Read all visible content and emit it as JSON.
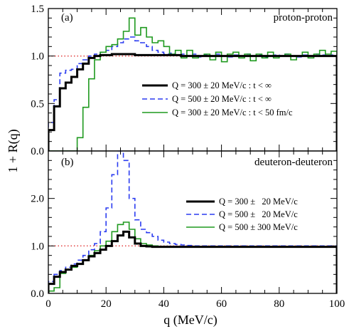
{
  "chart_data": [
    {
      "type": "line",
      "step": true,
      "panel_tag": "(a)",
      "title": "proton-proton",
      "xlabel": "q (MeV/c)",
      "ylabel": "1 + R(q)",
      "xlim": [
        0,
        100
      ],
      "ylim": [
        0,
        1.5
      ],
      "xticks": [
        "0",
        "20",
        "40",
        "60",
        "80",
        "100"
      ],
      "yticks": [
        "0.0",
        "0.5",
        "1.0",
        "1.5"
      ],
      "legend_position": "center-right",
      "reference_line": {
        "y": 1.0,
        "color": "#e03030",
        "style": "dotted"
      },
      "bin_edges": [
        0,
        2,
        4,
        6,
        8,
        10,
        12,
        14,
        16,
        18,
        20,
        22,
        24,
        26,
        28,
        30,
        32,
        34,
        36,
        38,
        40,
        42,
        44,
        46,
        48,
        50,
        52,
        54,
        56,
        58,
        60,
        62,
        64,
        66,
        68,
        70,
        72,
        74,
        76,
        78,
        80,
        82,
        84,
        86,
        88,
        90,
        92,
        94,
        96,
        98,
        100
      ],
      "series": [
        {
          "name": "Q = 300 ± 20 MeV/c : t < ∞",
          "color": "#000000",
          "dash": "solid",
          "width": 3,
          "values": [
            0.22,
            0.47,
            0.66,
            0.72,
            0.78,
            0.86,
            0.92,
            0.98,
            1.0,
            1.01,
            1.01,
            1.02,
            1.02,
            1.02,
            1.02,
            1.01,
            1.01,
            1.01,
            1.01,
            1.01,
            1.01,
            1.01,
            1.01,
            1.0,
            1.0,
            1.0,
            1.0,
            1.0,
            1.0,
            1.0,
            1.0,
            1.0,
            1.0,
            1.0,
            1.0,
            1.0,
            1.0,
            1.0,
            1.0,
            1.0,
            1.0,
            1.0,
            1.0,
            1.0,
            1.0,
            1.0,
            1.0,
            1.0,
            1.0,
            1.0
          ]
        },
        {
          "name": "Q = 500 ± 20 MeV/c : t < ∞",
          "color": "#2b3cf0",
          "dash": "dashed",
          "width": 1.6,
          "values": [
            0.3,
            0.54,
            0.82,
            0.85,
            0.86,
            0.92,
            0.96,
            1.0,
            1.02,
            1.04,
            1.06,
            1.1,
            1.14,
            1.18,
            1.2,
            1.16,
            1.14,
            1.1,
            1.06,
            1.04,
            1.02,
            1.03,
            1.01,
            1.02,
            1.0,
            1.02,
            0.99,
            1.01,
            1.0,
            1.02,
            1.0,
            0.99,
            1.01,
            1.0,
            1.02,
            1.0,
            1.01,
            0.99,
            1.0,
            1.01,
            1.0,
            1.02,
            1.0,
            0.99,
            1.01,
            1.0,
            1.02,
            1.01,
            1.0,
            1.01
          ]
        },
        {
          "name": "Q = 300 ± 20 MeV/c : t < 50 fm/c",
          "color": "#1f9a1f",
          "dash": "solid",
          "width": 1.6,
          "values": [
            0.0,
            0.0,
            0.0,
            0.0,
            0.0,
            0.14,
            0.46,
            0.76,
            0.96,
            1.04,
            1.1,
            1.12,
            1.18,
            1.26,
            1.4,
            1.22,
            1.3,
            1.2,
            1.14,
            1.16,
            1.1,
            1.02,
            1.06,
            0.98,
            1.06,
            0.98,
            1.0,
            1.02,
            0.96,
            1.04,
            0.94,
            1.02,
            1.04,
            0.98,
            1.02,
            0.95,
            1.02,
            0.98,
            1.04,
            0.98,
            1.0,
            1.02,
            0.96,
            1.0,
            1.04,
            0.98,
            1.02,
            1.06,
            1.02,
            1.05
          ]
        }
      ]
    },
    {
      "type": "line",
      "step": true,
      "panel_tag": "(b)",
      "title": "deuteron-deuteron",
      "xlabel": "q (MeV/c)",
      "ylabel": "1 + R(q)",
      "xlim": [
        0,
        100
      ],
      "ylim": [
        0,
        3.0
      ],
      "xticks": [
        "0",
        "20",
        "40",
        "60",
        "80",
        "100"
      ],
      "yticks": [
        "0.0",
        "1.0",
        "2.0"
      ],
      "legend_position": "center-right",
      "reference_line": {
        "y": 1.0,
        "color": "#e03030",
        "style": "dotted"
      },
      "bin_edges": [
        0,
        2,
        4,
        6,
        8,
        10,
        12,
        14,
        16,
        18,
        20,
        22,
        24,
        26,
        28,
        30,
        32,
        34,
        36,
        38,
        40,
        42,
        44,
        46,
        48,
        50,
        52,
        54,
        56,
        58,
        60,
        62,
        64,
        66,
        68,
        70,
        72,
        74,
        76,
        78,
        80,
        82,
        84,
        86,
        88,
        90,
        92,
        94,
        96,
        98,
        100
      ],
      "series": [
        {
          "name": "Q = 300 ±   20 MeV/c",
          "color": "#000000",
          "dash": "solid",
          "width": 3,
          "values": [
            0.2,
            0.35,
            0.45,
            0.5,
            0.58,
            0.62,
            0.7,
            0.78,
            0.85,
            0.92,
            1.0,
            1.1,
            1.22,
            1.3,
            1.18,
            1.05,
            1.0,
            0.99,
            0.98,
            0.98,
            0.98,
            0.98,
            0.98,
            0.98,
            0.98,
            0.98,
            0.98,
            0.98,
            0.98,
            0.98,
            0.98,
            0.98,
            0.98,
            0.98,
            0.98,
            0.98,
            0.98,
            0.98,
            0.98,
            0.98,
            0.98,
            0.98,
            0.98,
            0.98,
            0.98,
            0.98,
            0.98,
            0.98,
            0.98,
            0.98
          ]
        },
        {
          "name": "Q = 500 ±   20 MeV/c",
          "color": "#2b3cf0",
          "dash": "dashed",
          "width": 1.6,
          "values": [
            0.25,
            0.4,
            0.48,
            0.55,
            0.62,
            0.7,
            0.8,
            0.92,
            1.05,
            1.3,
            1.8,
            2.5,
            3.0,
            2.8,
            2.0,
            1.55,
            1.35,
            1.28,
            1.2,
            1.12,
            1.08,
            1.05,
            1.03,
            1.02,
            1.01,
            1.0,
            1.0,
            1.0,
            1.0,
            1.0,
            1.0,
            1.0,
            1.0,
            1.0,
            1.0,
            1.0,
            1.0,
            1.0,
            1.0,
            1.0,
            1.0,
            1.0,
            1.0,
            1.0,
            1.0,
            1.0,
            1.0,
            1.0,
            1.0,
            1.0
          ]
        },
        {
          "name": "Q = 500 ± 300 MeV/c",
          "color": "#1f9a1f",
          "dash": "solid",
          "width": 1.6,
          "values": [
            0.05,
            0.12,
            0.42,
            0.5,
            0.55,
            0.62,
            0.7,
            0.8,
            0.9,
            1.0,
            1.1,
            1.3,
            1.45,
            1.5,
            1.35,
            1.15,
            1.05,
            1.02,
            1.0,
            0.99,
            0.99,
            0.98,
            0.98,
            0.98,
            0.98,
            0.98,
            0.98,
            0.98,
            0.98,
            0.98,
            0.98,
            0.98,
            0.98,
            0.98,
            0.98,
            0.98,
            0.98,
            0.98,
            0.98,
            0.98,
            0.98,
            0.98,
            0.98,
            0.98,
            0.98,
            0.98,
            0.98,
            0.98,
            0.98,
            0.98
          ]
        }
      ]
    }
  ]
}
